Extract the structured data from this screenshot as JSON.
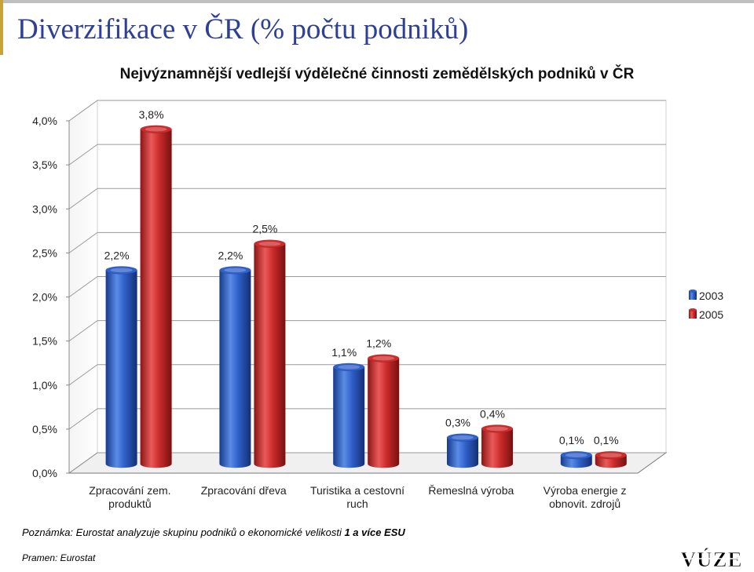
{
  "slide": {
    "title": "Diverzifikace v ČR (% počtu podniků)",
    "note_prefix": "Poznámka: Eurostat analyzuje skupinu podniků o ekonomické velikosti ",
    "note_bold": "1 a více ESU",
    "source": "Pramen: Eurostat",
    "logo_text": "VÚZE"
  },
  "chart_data": {
    "type": "bar",
    "title": "Nejvýznamnější vedlejší výdělečné činnosti zemědělských podniků v ČR",
    "categories": [
      [
        "Zpracování zem.",
        "produktů"
      ],
      [
        "Zpracování dřeva"
      ],
      [
        "Turistika a cestovní",
        "ruch"
      ],
      [
        "Řemeslná výroba"
      ],
      [
        "Výroba energie z",
        "obnovit. zdrojů"
      ]
    ],
    "series": [
      {
        "name": "2003",
        "values": [
          2.2,
          2.2,
          1.1,
          0.3,
          0.1
        ],
        "labels": [
          "2,2%",
          "2,2%",
          "1,1%",
          "0,3%",
          "0,1%"
        ],
        "color": "#2f5fc9"
      },
      {
        "name": "2005",
        "values": [
          3.8,
          2.5,
          1.2,
          0.4,
          0.1
        ],
        "labels": [
          "3,8%",
          "2,5%",
          "1,2%",
          "0,4%",
          "0,1%"
        ],
        "color": "#cc2b2b"
      }
    ],
    "ylim": [
      0,
      4
    ],
    "yticks": [
      {
        "v": 0,
        "label": "0,0%"
      },
      {
        "v": 0.5,
        "label": "0,5%"
      },
      {
        "v": 1,
        "label": "1,0%"
      },
      {
        "v": 1.5,
        "label": "1,5%"
      },
      {
        "v": 2,
        "label": "2,0%"
      },
      {
        "v": 2.5,
        "label": "2,5%"
      },
      {
        "v": 3,
        "label": "3,0%"
      },
      {
        "v": 3.5,
        "label": "3,5%"
      },
      {
        "v": 4,
        "label": "4,0%"
      }
    ],
    "grid": true,
    "legend_position": "right",
    "style": "3d-cylinder"
  }
}
